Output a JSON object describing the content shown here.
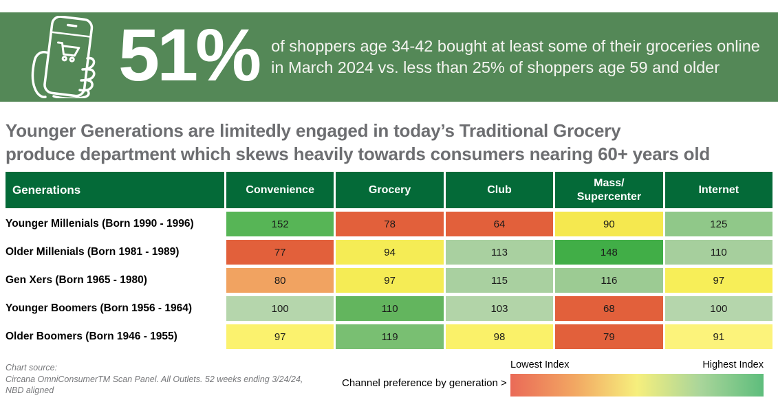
{
  "banner": {
    "stat": "51%",
    "description": "of shoppers age 34-42 bought at least some of their groceries online\nin March 2024 vs. less than 25% of shoppers age 59 and older",
    "background_color": "#548857",
    "icon": "hand-holding-phone-with-cart-icon"
  },
  "headline": "Younger Generations are limitedly engaged in today’s Traditional Grocery\nproduce department which skews heavily towards consumers nearing 60+ years old",
  "chart_data": {
    "type": "heatmap",
    "row_header": "Generations",
    "columns": [
      "Convenience",
      "Grocery",
      "Club",
      "Mass/\nSupercenter",
      "Internet"
    ],
    "header_color": "#046A38",
    "rows": [
      {
        "label": "Younger Millenials (Born 1990 - 1996)",
        "values": [
          152,
          78,
          64,
          90,
          125
        ],
        "colors": [
          "#57B556",
          "#E2603B",
          "#E2603B",
          "#F5E84F",
          "#90C889"
        ]
      },
      {
        "label": "Older Millenials (Born 1981 - 1989)",
        "values": [
          77,
          94,
          113,
          148,
          110
        ],
        "colors": [
          "#E2603B",
          "#F5EC55",
          "#A9D0A0",
          "#41AE47",
          "#A6CF9D"
        ]
      },
      {
        "label": "Gen Xers (Born 1965 - 1980)",
        "values": [
          80,
          97,
          115,
          116,
          97
        ],
        "colors": [
          "#F1A361",
          "#F5EC55",
          "#A9D0A0",
          "#9CCB93",
          "#F7EE58"
        ]
      },
      {
        "label": "Younger Boomers (Born 1956 - 1964)",
        "values": [
          100,
          110,
          103,
          68,
          100
        ],
        "colors": [
          "#B5D6AC",
          "#63B55E",
          "#B2D4A8",
          "#E2603B",
          "#B5D6AC"
        ]
      },
      {
        "label": "Older Boomers (Born 1946 - 1955)",
        "values": [
          97,
          119,
          98,
          79,
          91
        ],
        "colors": [
          "#FBF26E",
          "#79BF72",
          "#FAF169",
          "#E2603B",
          "#FCF37B"
        ]
      }
    ],
    "legend": {
      "low_label": "Lowest Index",
      "high_label": "Highest Index",
      "gradient": [
        "#EA6A57",
        "#F2A662",
        "#F6EF7D",
        "#A9D59A",
        "#5EBD7C"
      ]
    },
    "caption": "Channel preference by generation >"
  },
  "footer": {
    "source_lines": [
      "Chart source:",
      "Circana OmniConsumerTM Scan Panel. All Outlets. 52 weeks ending 3/24/24,",
      "NBD aligned"
    ]
  }
}
